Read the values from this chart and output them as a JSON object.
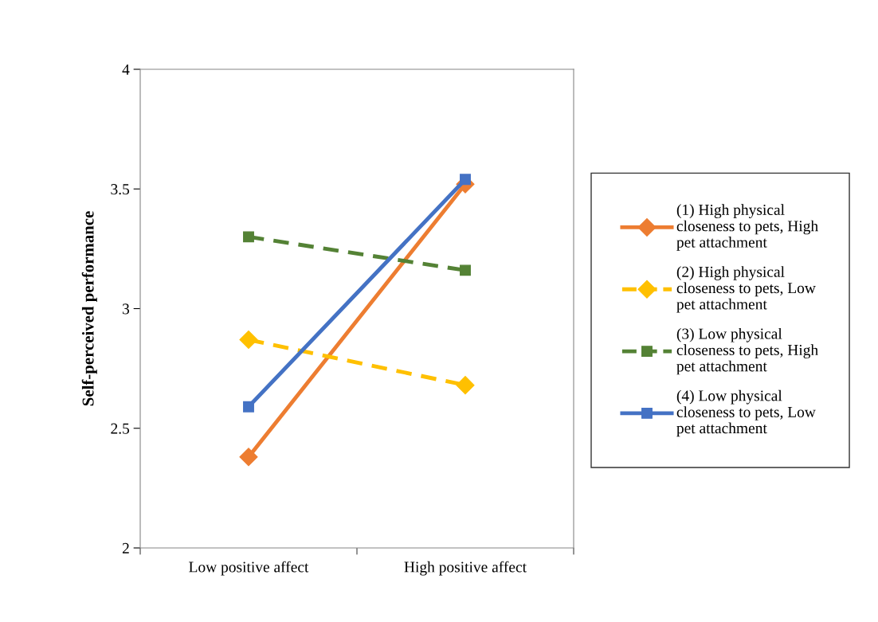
{
  "chart_data": {
    "type": "line",
    "ylabel": "Self-perceived performance",
    "categories": [
      "Low positive affect",
      "High positive affect"
    ],
    "series": [
      {
        "name": "(1) High physical closeness to pets, High pet attachment",
        "color": "#ed7d31",
        "values": [
          2.38,
          3.52
        ],
        "marker": "diamond",
        "line_style": "solid"
      },
      {
        "name": "(2) High physical closeness to pets, Low pet attachment",
        "color": "#ffc000",
        "values": [
          2.87,
          2.68
        ],
        "marker": "diamond",
        "line_style": "dashed"
      },
      {
        "name": "(3) Low physical closeness to pets, High pet attachment",
        "color": "#548235",
        "values": [
          3.3,
          3.16
        ],
        "marker": "square",
        "line_style": "dashed"
      },
      {
        "name": "(4) Low physical closeness to pets, Low pet attachment",
        "color": "#4472c4",
        "values": [
          2.59,
          3.54
        ],
        "marker": "square",
        "line_style": "solid"
      }
    ],
    "ylim": [
      2,
      4
    ],
    "yticks": [
      2,
      2.5,
      3,
      3.5,
      4
    ],
    "grid": false,
    "legend": "right"
  }
}
